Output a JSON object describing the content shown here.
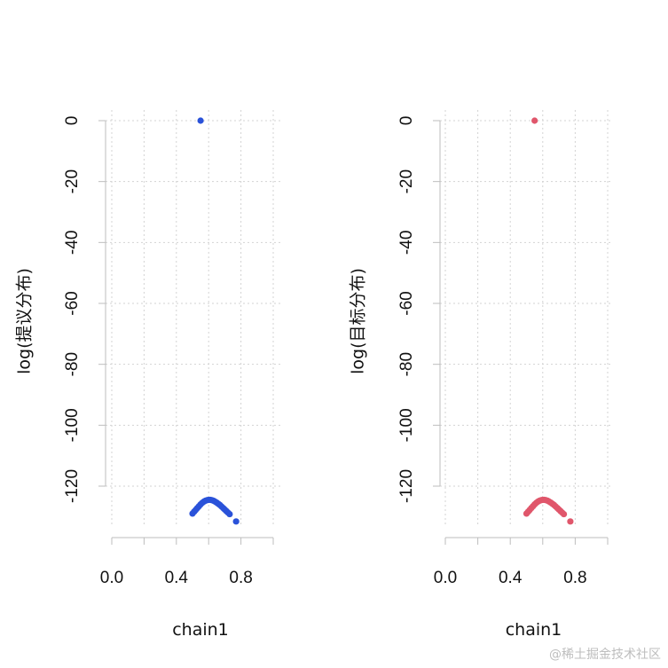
{
  "chart_data": [
    {
      "type": "scatter",
      "xlabel": "chain1",
      "ylabel": "log(提议分布)",
      "xlim": [
        0,
        1
      ],
      "ylim": [
        -135,
        3
      ],
      "x_ticks": [
        0.0,
        0.4,
        0.8
      ],
      "x_tick_labels": [
        "0.0",
        "0.4",
        "0.8"
      ],
      "y_ticks": [
        0,
        -20,
        -40,
        -60,
        -80,
        -100,
        -120
      ],
      "y_tick_labels": [
        "0",
        "-20",
        "-40",
        "-60",
        "-80",
        "-100",
        "-120"
      ],
      "grid": true,
      "color": "#2a52d9",
      "series": [
        {
          "x": [
            0.55,
            0.5,
            0.51,
            0.52,
            0.53,
            0.54,
            0.55,
            0.56,
            0.57,
            0.58,
            0.59,
            0.6,
            0.61,
            0.62,
            0.63,
            0.64,
            0.65,
            0.66,
            0.67,
            0.68,
            0.69,
            0.7,
            0.71,
            0.72,
            0.73,
            0.77
          ],
          "y": [
            0.0,
            -129.0,
            -128.4,
            -127.8,
            -127.2,
            -126.6,
            -126.0,
            -125.5,
            -125.1,
            -124.8,
            -124.6,
            -124.5,
            -124.5,
            -124.6,
            -124.8,
            -125.1,
            -125.4,
            -125.8,
            -126.2,
            -126.7,
            -127.2,
            -127.7,
            -128.2,
            -128.7,
            -129.2,
            -131.6
          ]
        }
      ]
    },
    {
      "type": "scatter",
      "xlabel": "chain1",
      "ylabel": "log(目标分布)",
      "xlim": [
        0,
        1
      ],
      "ylim": [
        -135,
        3
      ],
      "x_ticks": [
        0.0,
        0.4,
        0.8
      ],
      "x_tick_labels": [
        "0.0",
        "0.4",
        "0.8"
      ],
      "y_ticks": [
        0,
        -20,
        -40,
        -60,
        -80,
        -100,
        -120
      ],
      "y_tick_labels": [
        "0",
        "-20",
        "-40",
        "-60",
        "-80",
        "-100",
        "-120"
      ],
      "grid": true,
      "color": "#e0566b",
      "series": [
        {
          "x": [
            0.55,
            0.5,
            0.51,
            0.52,
            0.53,
            0.54,
            0.55,
            0.56,
            0.57,
            0.58,
            0.59,
            0.6,
            0.61,
            0.62,
            0.63,
            0.64,
            0.65,
            0.66,
            0.67,
            0.68,
            0.69,
            0.7,
            0.71,
            0.72,
            0.73,
            0.77
          ],
          "y": [
            0.0,
            -129.0,
            -128.4,
            -127.8,
            -127.2,
            -126.6,
            -126.0,
            -125.5,
            -125.1,
            -124.8,
            -124.6,
            -124.5,
            -124.5,
            -124.6,
            -124.8,
            -125.1,
            -125.4,
            -125.8,
            -126.2,
            -126.7,
            -127.2,
            -127.7,
            -128.2,
            -128.7,
            -129.2,
            -131.6
          ]
        }
      ]
    }
  ],
  "watermark": "@稀土掘金技术社区"
}
